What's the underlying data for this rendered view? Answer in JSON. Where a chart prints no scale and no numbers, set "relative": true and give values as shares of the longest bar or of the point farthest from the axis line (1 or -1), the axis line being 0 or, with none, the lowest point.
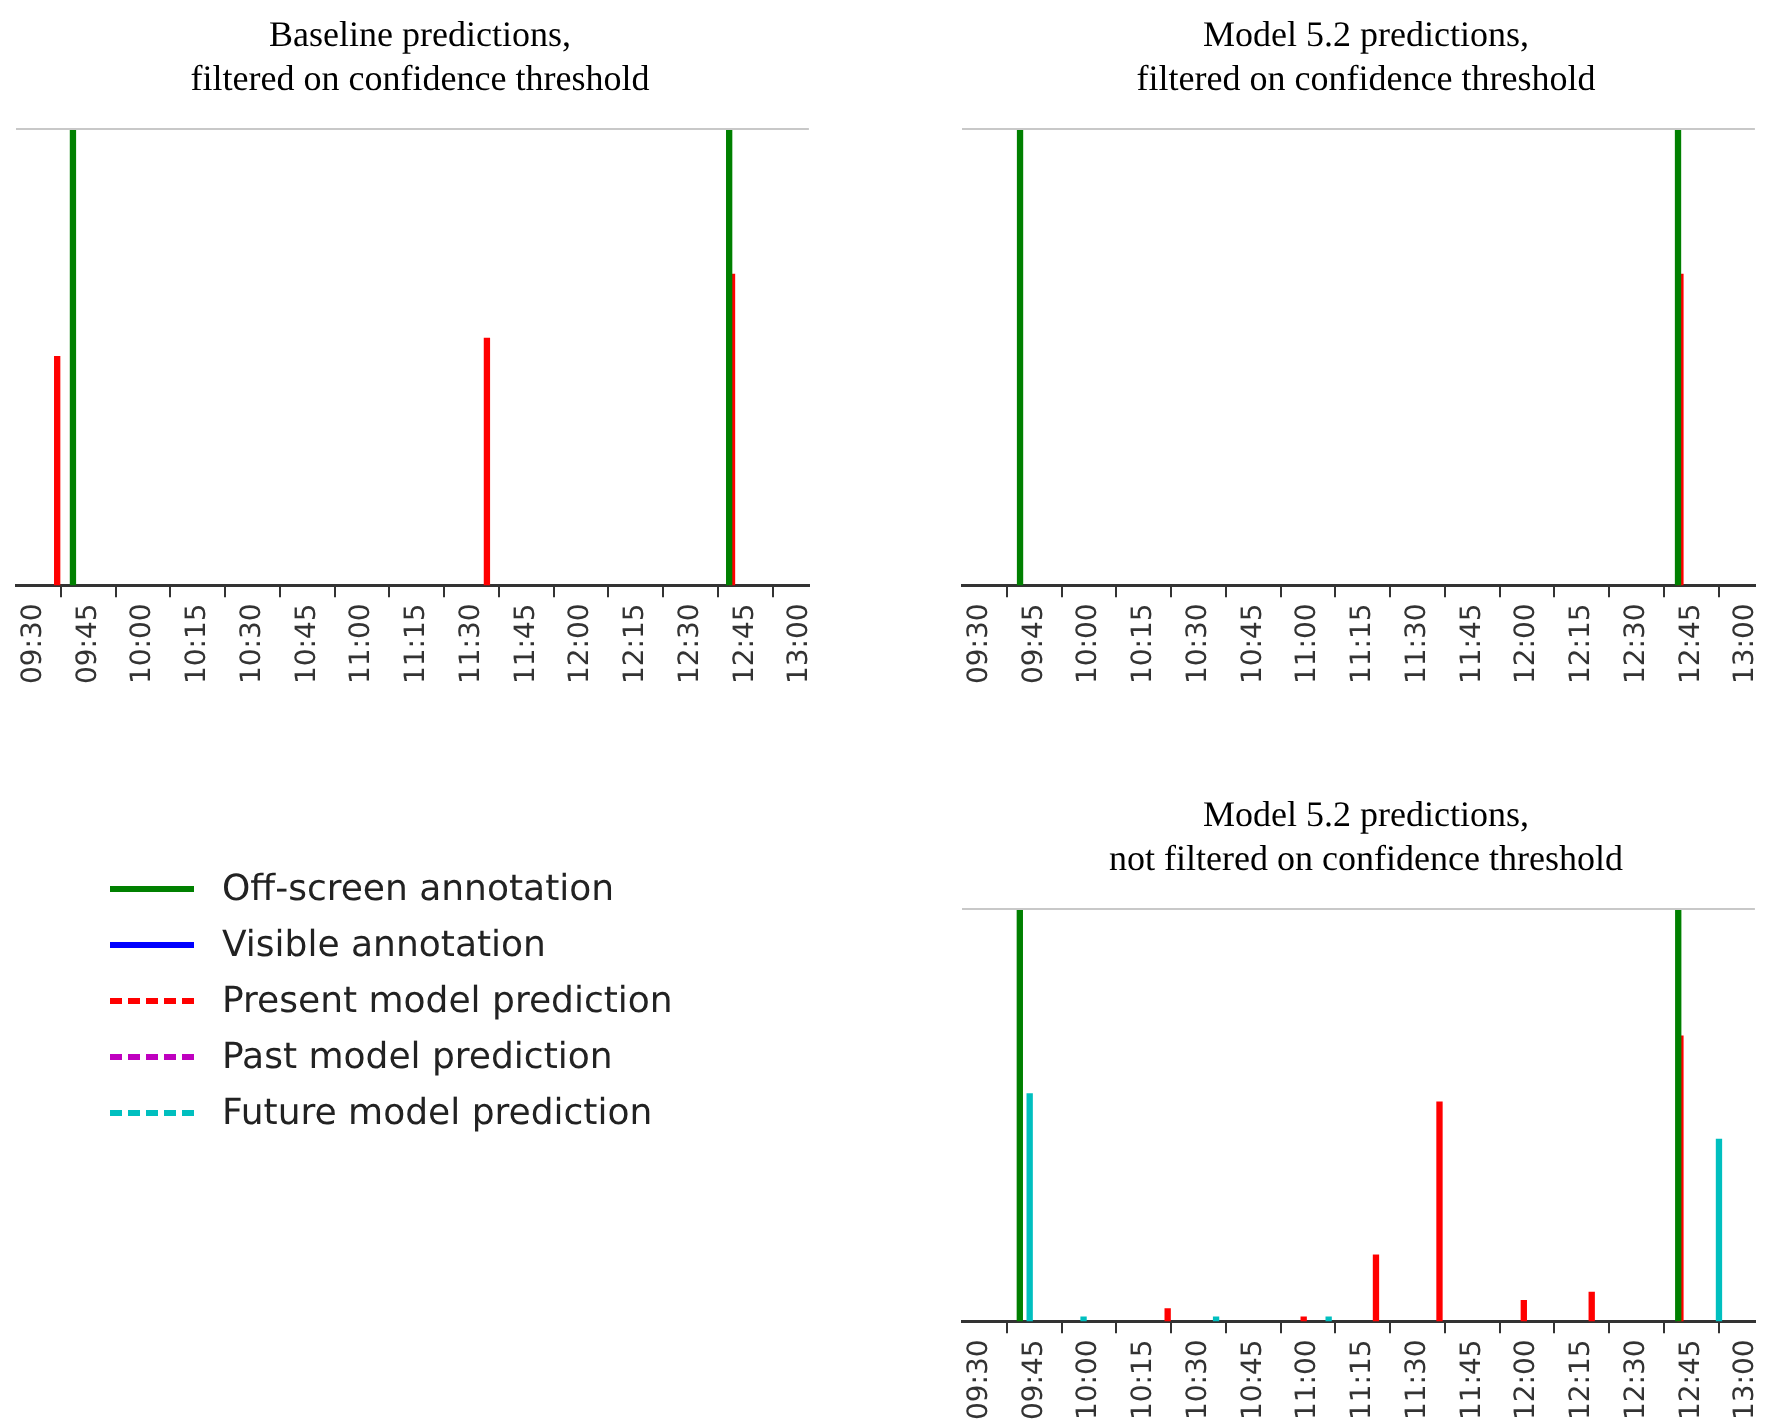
{
  "chart_data": [
    {
      "type": "bar",
      "relative": true,
      "title": "Baseline predictions,\nfiltered on confidence threshold",
      "xlim": [
        9.42,
        13.04
      ],
      "xticks": [
        {
          "value": 9.5,
          "label": "09:30"
        },
        {
          "value": 9.75,
          "label": "09:45"
        },
        {
          "value": 10,
          "label": "10:00"
        },
        {
          "value": 10.25,
          "label": "10:15"
        },
        {
          "value": 10.5,
          "label": "10:30"
        },
        {
          "value": 10.75,
          "label": "10:45"
        },
        {
          "value": 11,
          "label": "11:00"
        },
        {
          "value": 11.25,
          "label": "11:15"
        },
        {
          "value": 11.5,
          "label": "11:30"
        },
        {
          "value": 11.75,
          "label": "11:45"
        },
        {
          "value": 12,
          "label": "12:00"
        },
        {
          "value": 12.25,
          "label": "12:15"
        },
        {
          "value": 12.5,
          "label": "12:30"
        },
        {
          "value": 12.75,
          "label": "12:45"
        },
        {
          "value": 13,
          "label": "13:00"
        }
      ],
      "series": [
        {
          "color": "#008000",
          "x": [
            9.68,
            12.676
          ],
          "values": [
            1,
            1
          ]
        },
        {
          "color": "#ff0000",
          "x": [
            9.608,
            11.57,
            12.689
          ],
          "values": [
            0.5,
            0.54,
            0.68
          ]
        }
      ]
    },
    {
      "type": "bar",
      "relative": true,
      "title": "Model 5.2 predictions,\nfiltered on confidence threshold",
      "xlim": [
        9.42,
        13.04
      ],
      "xticks": [
        {
          "value": 9.5,
          "label": "09:30"
        },
        {
          "value": 9.75,
          "label": "09:45"
        },
        {
          "value": 10,
          "label": "10:00"
        },
        {
          "value": 10.25,
          "label": "10:15"
        },
        {
          "value": 10.5,
          "label": "10:30"
        },
        {
          "value": 10.75,
          "label": "10:45"
        },
        {
          "value": 11,
          "label": "11:00"
        },
        {
          "value": 11.25,
          "label": "11:15"
        },
        {
          "value": 11.5,
          "label": "11:30"
        },
        {
          "value": 11.75,
          "label": "11:45"
        },
        {
          "value": 12,
          "label": "12:00"
        },
        {
          "value": 12.25,
          "label": "12:15"
        },
        {
          "value": 12.5,
          "label": "12:30"
        },
        {
          "value": 12.75,
          "label": "12:45"
        },
        {
          "value": 13,
          "label": "13:00"
        }
      ],
      "series": [
        {
          "color": "#008000",
          "x": [
            9.685,
            12.689
          ],
          "values": [
            1,
            1
          ]
        },
        {
          "color": "#ff0000",
          "x": [
            12.7
          ],
          "values": [
            0.68
          ]
        }
      ]
    },
    {
      "type": "bar",
      "relative": true,
      "title": "Model 5.2 predictions,\nnot filtered on confidence threshold",
      "xlim": [
        9.42,
        13.04
      ],
      "legend": "left",
      "xticks": [
        {
          "value": 9.5,
          "label": "09:30"
        },
        {
          "value": 9.75,
          "label": "09:45"
        },
        {
          "value": 10,
          "label": "10:00"
        },
        {
          "value": 10.25,
          "label": "10:15"
        },
        {
          "value": 10.5,
          "label": "10:30"
        },
        {
          "value": 10.75,
          "label": "10:45"
        },
        {
          "value": 11,
          "label": "11:00"
        },
        {
          "value": 11.25,
          "label": "11:15"
        },
        {
          "value": 11.5,
          "label": "11:30"
        },
        {
          "value": 11.75,
          "label": "11:45"
        },
        {
          "value": 12,
          "label": "12:00"
        },
        {
          "value": 12.25,
          "label": "12:15"
        },
        {
          "value": 12.5,
          "label": "12:30"
        },
        {
          "value": 12.75,
          "label": "12:45"
        },
        {
          "value": 13,
          "label": "13:00"
        }
      ],
      "series": [
        {
          "name": "Off-screen annotation",
          "color": "#008000",
          "line_style": "solid",
          "x": [
            9.684,
            12.69
          ],
          "values": [
            1,
            1
          ]
        },
        {
          "name": "Visible annotation",
          "color": "#0000ff",
          "line_style": "solid"
        },
        {
          "name": "Present model prediction",
          "color": "#ff0000",
          "line_style": "dashed",
          "x": [
            10.359,
            10.98,
            11.31,
            11.6,
            11.985,
            12.295,
            12.7
          ],
          "values": [
            0.03,
            0.01,
            0.16,
            0.53,
            0.05,
            0.07,
            0.69
          ]
        },
        {
          "name": "Past model prediction",
          "color": "#bf00bf",
          "line_style": "dashed"
        },
        {
          "name": "Future model prediction",
          "color": "#00bfbf",
          "line_style": "dashed",
          "x": [
            9.729,
            9.975,
            10.58,
            11.094,
            12.876
          ],
          "values": [
            0.55,
            0.01,
            0.01,
            0.01,
            0.44
          ]
        }
      ]
    }
  ]
}
